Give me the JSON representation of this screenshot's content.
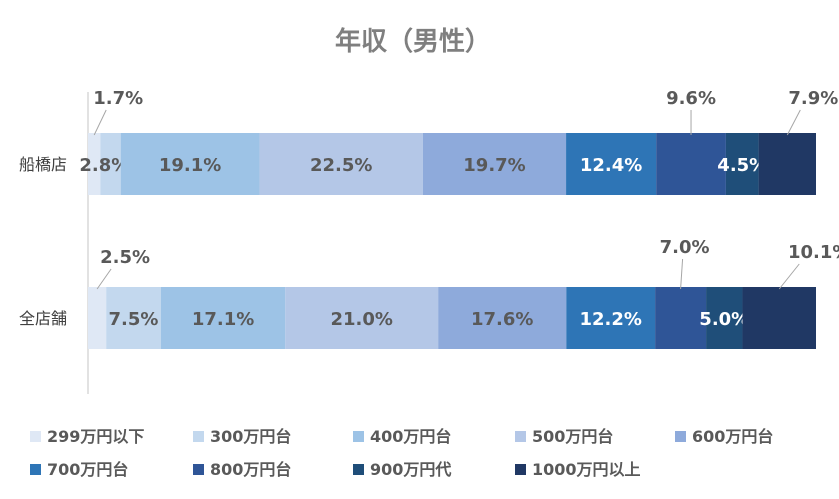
{
  "chart_data": {
    "type": "bar",
    "orientation": "horizontal",
    "stacked": "100%",
    "title": "年収（男性）",
    "categories": [
      "船橋店",
      "全店舗"
    ],
    "series": [
      {
        "name": "299万円以下",
        "color": "#dfe8f5",
        "values": [
          1.7,
          2.5
        ]
      },
      {
        "name": "300万円台",
        "color": "#c3d8ee",
        "values": [
          2.8,
          7.5
        ]
      },
      {
        "name": "400万円台",
        "color": "#9dc3e6",
        "values": [
          19.1,
          17.1
        ]
      },
      {
        "name": "500万円台",
        "color": "#b4c7e7",
        "values": [
          22.5,
          21.0
        ]
      },
      {
        "name": "600万円台",
        "color": "#8eaadb",
        "values": [
          19.7,
          17.6
        ]
      },
      {
        "name": "700万円台",
        "color": "#2e75b6",
        "values": [
          12.4,
          12.2
        ]
      },
      {
        "name": "800万円台",
        "color": "#2f5597",
        "values": [
          9.6,
          7.0
        ]
      },
      {
        "name": "900万円代",
        "color": "#1f4e79",
        "values": [
          4.5,
          5.0
        ]
      },
      {
        "name": "1000万円以上",
        "color": "#203864",
        "values": [
          7.9,
          10.1
        ]
      }
    ],
    "data_labels": [
      [
        "1.7%",
        "2.8%",
        "19.1%",
        "22.5%",
        "19.7%",
        "12.4%",
        "9.6%",
        "4.5%",
        "7.9%"
      ],
      [
        "2.5%",
        "7.5%",
        "17.1%",
        "21.0%",
        "17.6%",
        "12.2%",
        "7.0%",
        "5.0%",
        "10.1%"
      ]
    ],
    "legend_position": "bottom",
    "grid": false
  }
}
